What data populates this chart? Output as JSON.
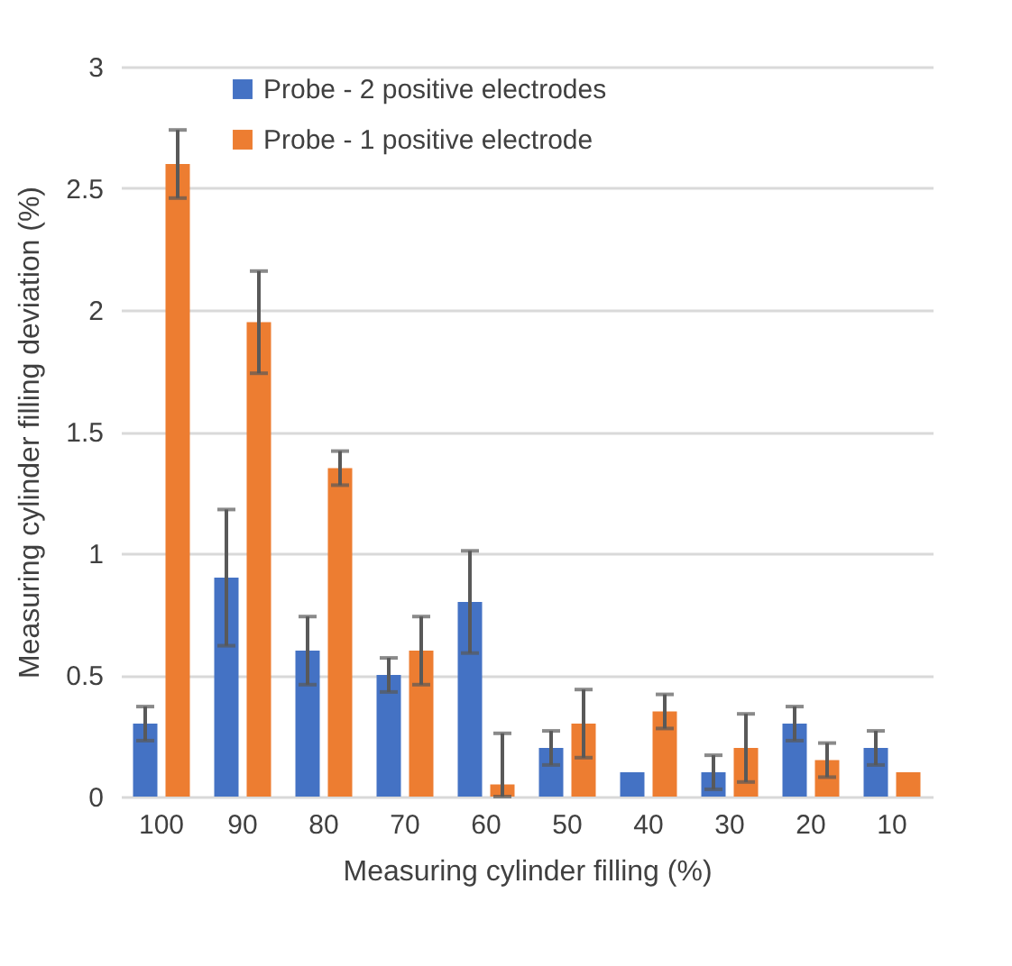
{
  "chart_data": {
    "type": "bar",
    "xlabel": "Measuring cylinder filling (%)",
    "ylabel": "Measuring cylinder filling deviation (%)",
    "categories": [
      "100",
      "90",
      "80",
      "70",
      "60",
      "50",
      "40",
      "30",
      "20",
      "10"
    ],
    "series": [
      {
        "name": "Probe - 2 positive electrodes",
        "color": "#4472c4",
        "values": [
          0.3,
          0.9,
          0.6,
          0.5,
          0.8,
          0.2,
          0.1,
          0.1,
          0.3,
          0.2
        ],
        "errors": [
          0.07,
          0.28,
          0.14,
          0.07,
          0.21,
          0.07,
          null,
          0.07,
          0.07,
          0.07
        ]
      },
      {
        "name": "Probe - 1 positive electrode",
        "color": "#ed7d31",
        "values": [
          2.6,
          1.95,
          1.35,
          0.6,
          0.05,
          0.3,
          0.35,
          0.2,
          0.15,
          0.1
        ],
        "errors": [
          0.14,
          0.21,
          0.07,
          0.14,
          [
            0,
            0.26
          ],
          0.14,
          0.07,
          0.14,
          0.07,
          null
        ]
      }
    ],
    "ylim": [
      0,
      3
    ],
    "yticks": [
      0,
      0.5,
      1,
      1.5,
      2,
      2.5,
      3
    ],
    "grid": "y",
    "legend": "top"
  }
}
